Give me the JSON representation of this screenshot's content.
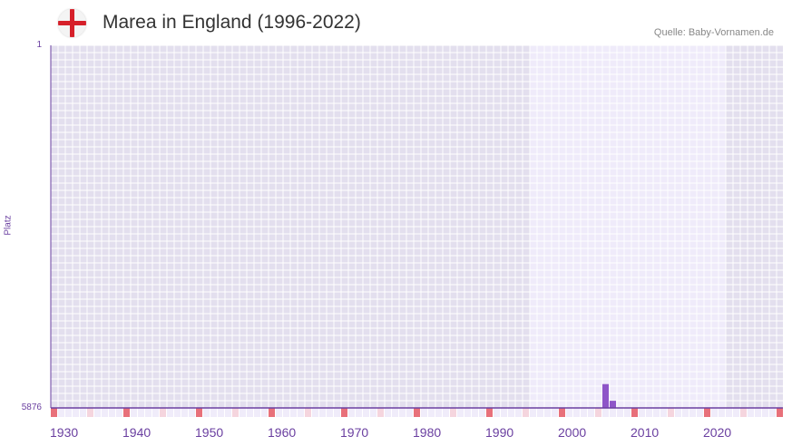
{
  "header": {
    "title": "Marea in England (1996-2022)",
    "source": "Quelle: Baby-Vornamen.de",
    "flag_icon": "england-flag-icon"
  },
  "chart_data": {
    "type": "bar",
    "title": "Marea in England (1996-2022)",
    "ylabel": "Platz",
    "ylim": [
      5876,
      1
    ],
    "y_ticks": [
      "1",
      "5876"
    ],
    "x_range": [
      1930,
      2030
    ],
    "x_ticks": [
      1930,
      1940,
      1950,
      1960,
      1970,
      1980,
      1990,
      2000,
      2010,
      2020
    ],
    "data_period": [
      1996,
      2022
    ],
    "x": [
      2006,
      2007
    ],
    "values": [
      5490,
      5760
    ],
    "colors": {
      "bar": "#8e55c8",
      "axis": "#6a3fa0",
      "decade_marker": "#e8707a",
      "half_decade_marker": "#f5d5de"
    }
  }
}
